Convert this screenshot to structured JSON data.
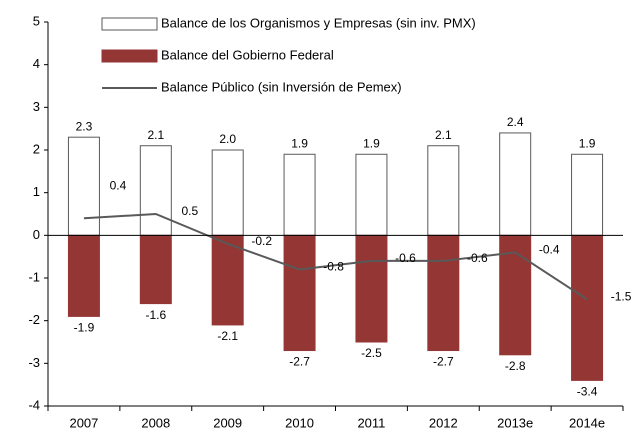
{
  "chart_data": {
    "type": "bar",
    "categories": [
      "2007",
      "2008",
      "2009",
      "2010",
      "2011",
      "2012",
      "2013e",
      "2014e"
    ],
    "series": [
      {
        "name": "Balance de los Organismos y Empresas (sin inv. PMX)",
        "color": "#ffffff",
        "values": [
          2.3,
          2.1,
          2.0,
          1.9,
          1.9,
          2.1,
          2.4,
          1.9
        ],
        "value_labels": [
          "2.3",
          "2.1",
          "2.0",
          "1.9",
          "1.9",
          "2.1",
          "2.4",
          "1.9"
        ]
      },
      {
        "name": "Balance del Gobierno Federal",
        "color": "#943634",
        "values": [
          -1.9,
          -1.6,
          -2.1,
          -2.7,
          -2.5,
          -2.7,
          -2.8,
          -3.4
        ],
        "value_labels": [
          "-1.9",
          "-1.6",
          "-2.1",
          "-2.7",
          "-2.5",
          "-2.7",
          "-2.8",
          "-3.4"
        ]
      },
      {
        "name": "Balance Público (sin Inversión de Pemex)",
        "type": "line",
        "color": "#595959",
        "values": [
          0.4,
          0.5,
          -0.2,
          -0.8,
          -0.6,
          -0.6,
          -0.4,
          -1.5
        ],
        "value_labels": [
          "0.4",
          "0.5",
          "-0.2",
          "-0.8",
          "-0.6",
          "-0.6",
          "-0.4",
          "-1.5"
        ]
      }
    ],
    "ylim": [
      -4,
      5
    ],
    "yticks": [
      -4,
      -3,
      -2,
      -1,
      0,
      1,
      2,
      3,
      4,
      5
    ]
  }
}
